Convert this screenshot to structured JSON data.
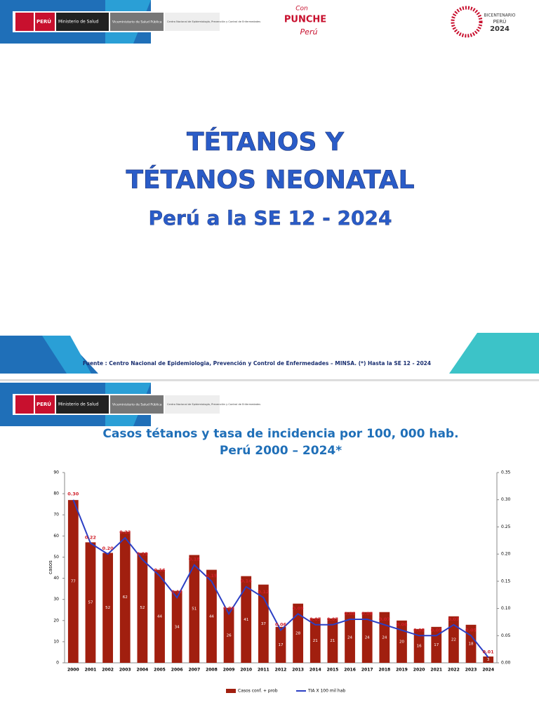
{
  "header": {
    "country": "PERÚ",
    "ministry": "Ministerio de Salud",
    "vice": "Viceministerio de Salud Pública",
    "center": "Centro Nacional de Epidemiología, Prevención y Control de Enfermedades",
    "campaign_1": "Con",
    "campaign_2": "PUNCHE",
    "campaign_3": "Perú",
    "bicentenario_1": "BICENTENARIO",
    "bicentenario_2": "PERÚ",
    "bicentenario_3": "2024"
  },
  "cover": {
    "title_1": "TÉTANOS Y",
    "title_2": "TÉTANOS NEONATAL",
    "subtitle": "Perú a la SE 12 - 2024",
    "source": "Fuente : Centro Nacional de Epidemiologia, Prevención y Control de Enfermedades – MINSA.  (*) Hasta la SE  12 - 2024"
  },
  "chart_data": {
    "type": "bar",
    "title": "Casos tétanos y tasa de incidencia por 100, 000 hab.",
    "subtitle": "Perú 2000 – 2024*",
    "y_label": "casos",
    "categories": [
      "2000",
      "2001",
      "2002",
      "2003",
      "2004",
      "2005",
      "2006",
      "2007",
      "2008",
      "2009",
      "2010",
      "2011",
      "2012",
      "2013",
      "2014",
      "2015",
      "2016",
      "2017",
      "2018",
      "2019",
      "2020",
      "2021",
      "2022",
      "2023",
      "2024"
    ],
    "series": [
      {
        "name": "Casos conf. + prob",
        "color": "#a11f0f",
        "values": [
          77,
          57,
          52,
          62,
          52,
          44,
          34,
          51,
          44,
          26,
          41,
          37,
          17,
          28,
          21,
          21,
          24,
          24,
          24,
          20,
          16,
          17,
          22,
          18,
          3
        ]
      },
      {
        "name": "TIA X 100 mil hab",
        "color": "#2b3fc4",
        "axis": "y2",
        "type": "line",
        "values": [
          0.3,
          0.22,
          0.2,
          0.23,
          0.19,
          0.16,
          0.12,
          0.18,
          0.15,
          0.09,
          0.14,
          0.12,
          0.06,
          0.09,
          0.07,
          0.07,
          0.08,
          0.08,
          0.07,
          0.06,
          0.05,
          0.05,
          0.07,
          0.05,
          0.01
        ],
        "value_labels": [
          "0.30",
          "0.22",
          "0.20",
          "0.23",
          "0.19",
          "0.16",
          "0.12",
          "0.18",
          "0.15",
          "0.09",
          "0.14",
          "0.12",
          "0.06",
          "0.09",
          "0.07",
          "0.07",
          "0.08",
          "0.08",
          "0.07",
          "0.06",
          "0.05",
          "0.05",
          "0.07",
          "0.05",
          "0.01"
        ]
      }
    ],
    "ylim": [
      0,
      90
    ],
    "yticks": [
      0,
      10,
      20,
      30,
      40,
      50,
      60,
      70,
      80,
      90
    ],
    "y2lim": [
      0,
      0.35
    ],
    "y2ticks": [
      {
        "value": 0,
        "label": "0.00"
      },
      {
        "value": 0.05,
        "label": "0.05"
      },
      {
        "value": 0.1,
        "label": "0.10"
      },
      {
        "value": 0.15,
        "label": "0.15"
      },
      {
        "value": 0.2,
        "label": "0.20"
      },
      {
        "value": 0.25,
        "label": "0.25"
      },
      {
        "value": 0.3,
        "label": "0.30"
      },
      {
        "value": 0.35,
        "label": "0.35"
      }
    ],
    "legend": "bottom"
  }
}
